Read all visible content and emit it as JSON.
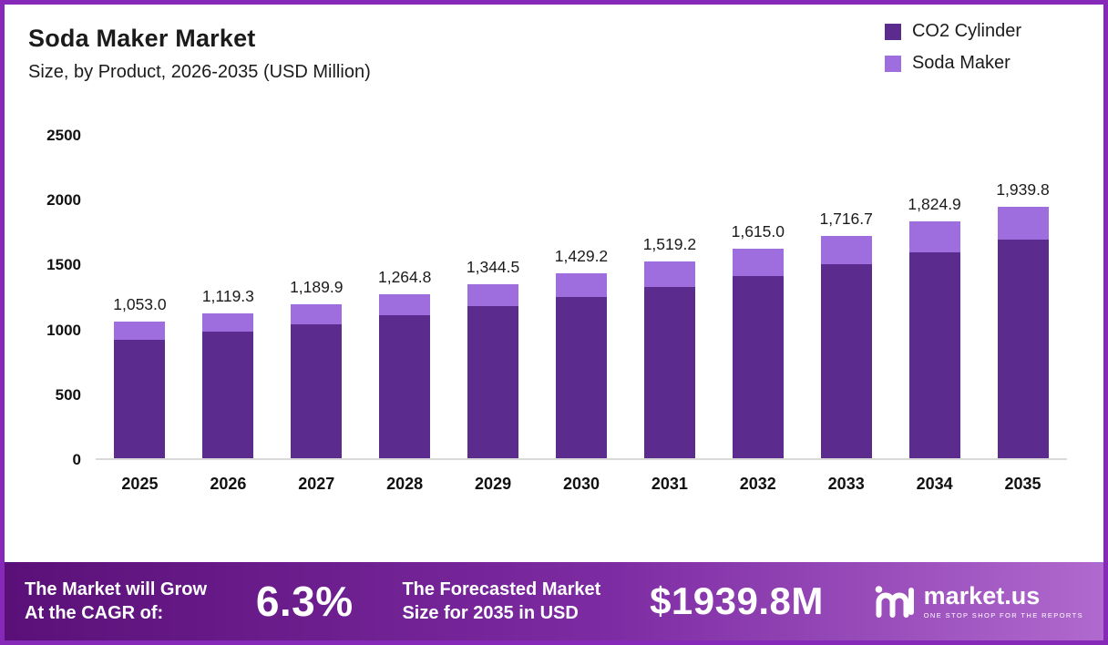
{
  "chart": {
    "title": "Soda Maker Market",
    "subtitle": "Size, by Product, 2026-2035 (USD Million)"
  },
  "chart_data": {
    "type": "bar",
    "stacked": true,
    "title": "Soda Maker Market",
    "subtitle": "Size, by Product, 2026-2035 (USD Million)",
    "categories": [
      "2025",
      "2026",
      "2027",
      "2028",
      "2029",
      "2030",
      "2031",
      "2032",
      "2033",
      "2034",
      "2035"
    ],
    "series": [
      {
        "name": "CO2 Cylinder",
        "color": "#5b2b8e",
        "values": [
          916.1,
          973.8,
          1035.2,
          1100.4,
          1169.7,
          1243.4,
          1321.7,
          1405.1,
          1493.5,
          1587.7,
          1687.6
        ]
      },
      {
        "name": "Soda Maker",
        "color": "#9e6ede",
        "values": [
          136.9,
          145.5,
          154.7,
          164.4,
          174.8,
          185.8,
          197.5,
          209.9,
          223.2,
          237.2,
          252.2
        ]
      }
    ],
    "totals": [
      "1,053.0",
      "1,119.3",
      "1,189.9",
      "1,264.8",
      "1,344.5",
      "1,429.2",
      "1,519.2",
      "1,615.0",
      "1,716.7",
      "1,824.9",
      "1,939.8"
    ],
    "yticks": [
      0,
      500,
      1000,
      1500,
      2000,
      2500
    ],
    "ylim": [
      0,
      2500
    ],
    "grid": false,
    "legend_position": "top-right",
    "xlabel": "",
    "ylabel": ""
  },
  "banner": {
    "cagr_line1": "The Market will Grow",
    "cagr_line2": "At the CAGR of:",
    "cagr_value": "6.3%",
    "forecast_line1": "The Forecasted Market",
    "forecast_line2": "Size for 2035 in USD",
    "forecast_value": "$1939.8M",
    "brand_name": "market.us",
    "brand_tagline": "ONE STOP SHOP FOR THE REPORTS"
  }
}
